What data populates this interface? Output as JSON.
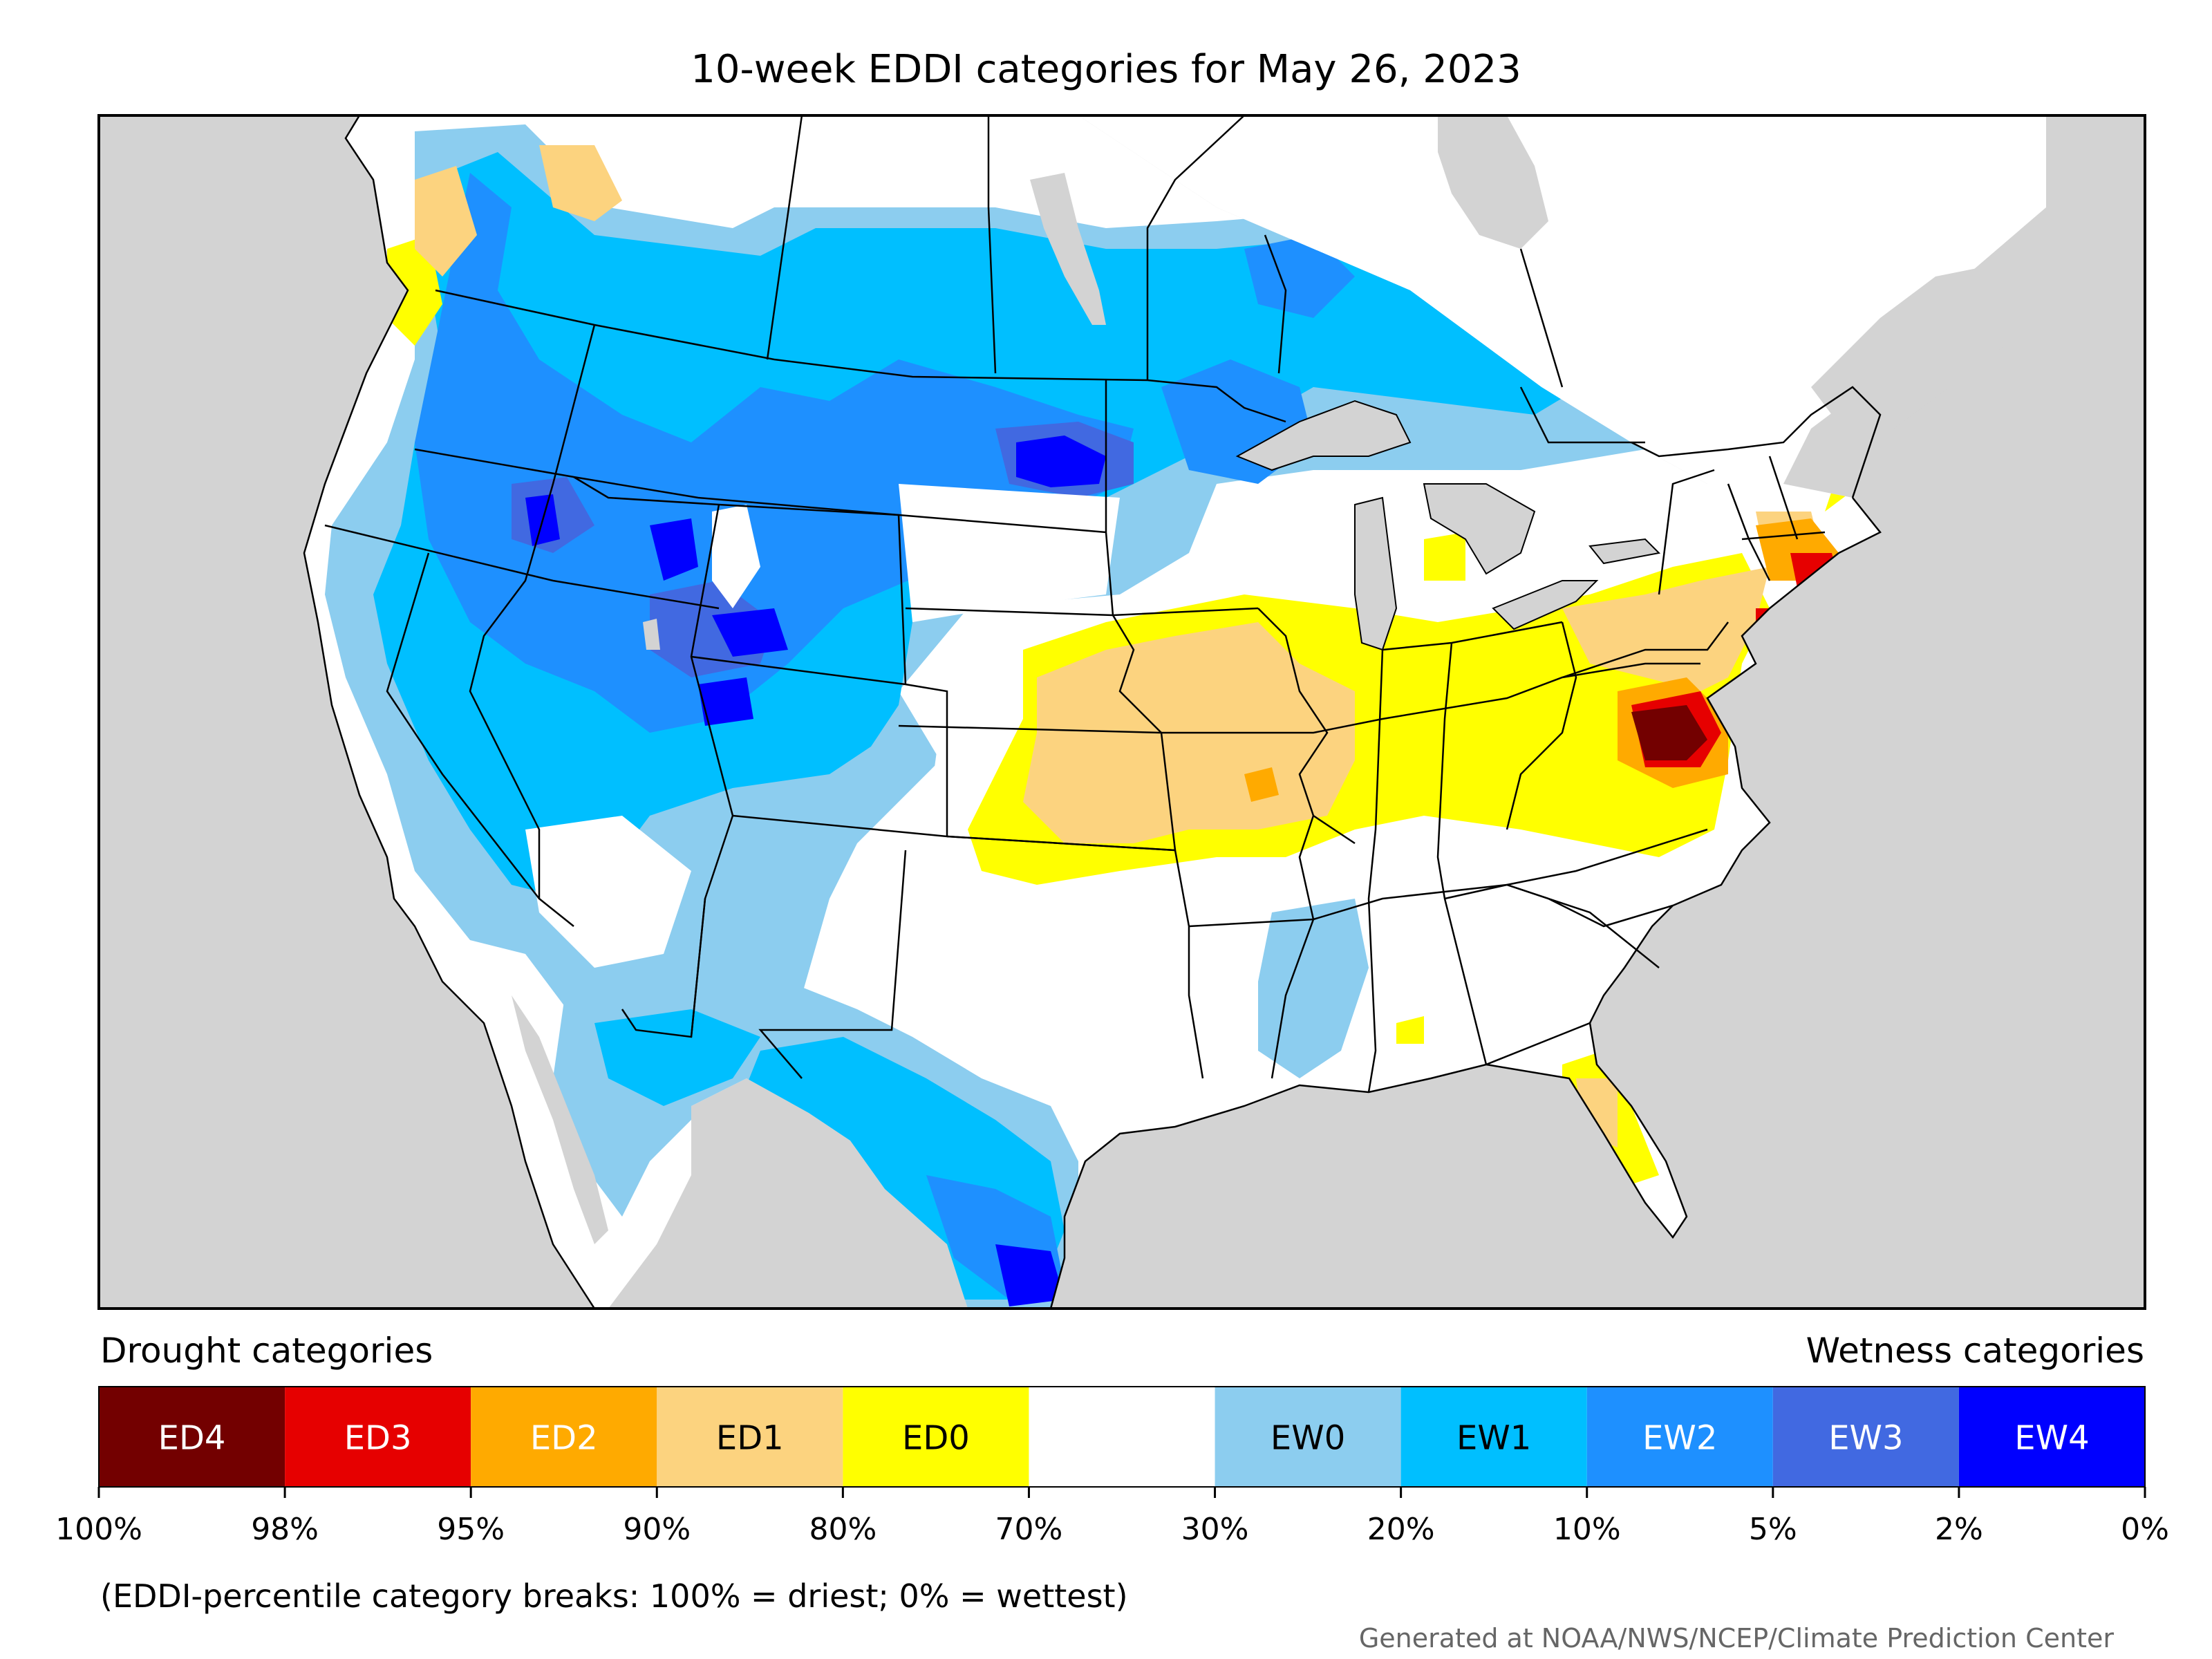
{
  "title": "10-week EDDI categories for May 26, 2023",
  "legend": {
    "drought_title": "Drought categories",
    "wetness_title": "Wetness categories",
    "categories": [
      {
        "label": "ED4",
        "color": "#730000",
        "text_color": "#ffffff"
      },
      {
        "label": "ED3",
        "color": "#e60000",
        "text_color": "#ffffff"
      },
      {
        "label": "ED2",
        "color": "#ffaa00",
        "text_color": "#ffffff"
      },
      {
        "label": "ED1",
        "color": "#fcd37f",
        "text_color": "#000000"
      },
      {
        "label": "ED0",
        "color": "#ffff00",
        "text_color": "#000000"
      },
      {
        "label": "",
        "color": "#ffffff",
        "text_color": "#000000"
      },
      {
        "label": "EW0",
        "color": "#8ccdef",
        "text_color": "#000000"
      },
      {
        "label": "EW1",
        "color": "#00bfff",
        "text_color": "#000000"
      },
      {
        "label": "EW2",
        "color": "#1e90ff",
        "text_color": "#ffffff"
      },
      {
        "label": "EW3",
        "color": "#4169e1",
        "text_color": "#ffffff"
      },
      {
        "label": "EW4",
        "color": "#0000ff",
        "text_color": "#ffffff"
      }
    ],
    "tick_labels": [
      "100%",
      "98%",
      "95%",
      "90%",
      "80%",
      "70%",
      "30%",
      "20%",
      "10%",
      "5%",
      "2%",
      "0%"
    ]
  },
  "footnote": "(EDDI-percentile category breaks: 100% = driest; 0% = wettest)",
  "credit": "Generated at NOAA/NWS/NCEP/Climate Prediction Center",
  "colors": {
    "land": "#ffffff",
    "ocean": "#d3d3d3",
    "lakes": "#d3d3d3",
    "borders": "#000000"
  }
}
